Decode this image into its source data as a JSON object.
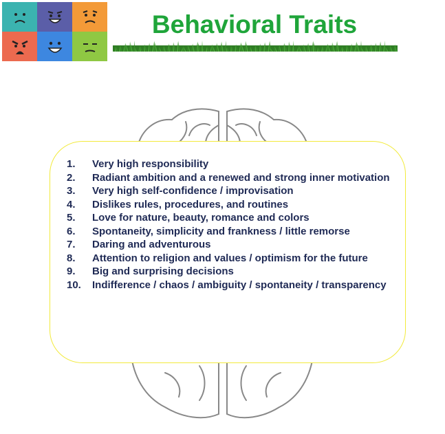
{
  "title": "Behavioral Traits",
  "traits": [
    {
      "num": "1.",
      "text": "Very high responsibility"
    },
    {
      "num": "2.",
      "text": "Radiant ambition and a renewed and strong inner motivation"
    },
    {
      "num": "3.",
      "text": "Very high self-confidence / improvisation"
    },
    {
      "num": "4.",
      "text": "Dislikes rules, procedures, and routines"
    },
    {
      "num": "5.",
      "text": "Love for nature, beauty, romance and colors"
    },
    {
      "num": "6.",
      "text": "Spontaneity, simplicity and frankness / little remorse"
    },
    {
      "num": "7.",
      "text": "Daring and adventurous"
    },
    {
      "num": "8.",
      "text": "Attention to religion and values / optimism for the future"
    },
    {
      "num": "9.",
      "text": "Big and surprising decisions"
    },
    {
      "num": "10.",
      "text": "Indifference / chaos / ambiguity / spontaneity / transparency"
    }
  ],
  "emojis": [
    {
      "icon": "sad-face-icon",
      "color": "#3bb3b0"
    },
    {
      "icon": "happy-face-icon",
      "color": "#5b5ea8"
    },
    {
      "icon": "worried-face-icon",
      "color": "#f39a38"
    },
    {
      "icon": "angry-face-icon",
      "color": "#ec6a4f"
    },
    {
      "icon": "laughing-face-icon",
      "color": "#3d87e0"
    },
    {
      "icon": "neutral-face-icon",
      "color": "#8fc843"
    }
  ],
  "colors": {
    "title": "#1fa53a",
    "text": "#1f2a55",
    "card_border": "#f2ea3a",
    "grass": "#3f9a2e"
  }
}
